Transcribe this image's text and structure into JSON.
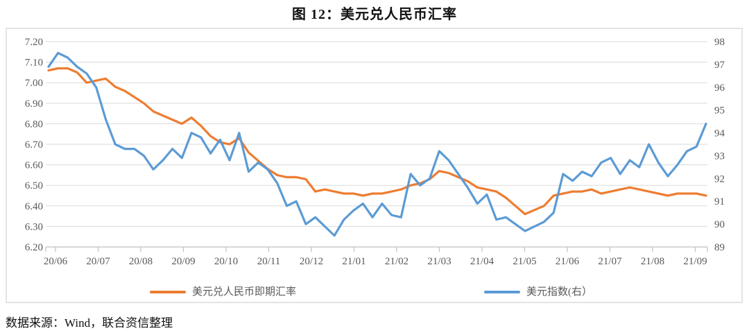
{
  "figure": {
    "title": "图 12：美元兑人民币汇率",
    "source": "数据来源：Wind，联合资信整理"
  },
  "legend": {
    "items": [
      {
        "label": "美元兑人民币即期汇率",
        "color": "#ED7D31"
      },
      {
        "label": "美元指数(右）",
        "color": "#5B9BD5"
      }
    ]
  },
  "chart_data": {
    "type": "line",
    "title": "图 12：美元兑人民币汇率",
    "grid": true,
    "legend_position": "bottom",
    "x_tick_labels": [
      "20/06",
      "20/07",
      "20/08",
      "20/09",
      "20/10",
      "20/11",
      "20/12",
      "21/01",
      "21/02",
      "21/03",
      "21/04",
      "21/05",
      "21/06",
      "21/07",
      "21/08",
      "21/09"
    ],
    "y_left": {
      "min": 6.2,
      "max": 7.2,
      "tick_step": 0.1,
      "ticks": [
        "7.20",
        "7.10",
        "7.00",
        "6.90",
        "6.80",
        "6.70",
        "6.60",
        "6.50",
        "6.40",
        "6.30",
        "6.20"
      ]
    },
    "y_right": {
      "min": 89,
      "max": 98,
      "tick_step": 1,
      "ticks": [
        "98",
        "97",
        "96",
        "95",
        "94",
        "93",
        "92",
        "91",
        "90",
        "89"
      ]
    },
    "style": {
      "grid_color": "#D9D9D9",
      "axis_color": "#BFBFBF",
      "label_color": "#595959"
    },
    "series": [
      {
        "name": "美元兑人民币即期汇率",
        "axis": "left",
        "color": "#ED7D31",
        "values": [
          7.06,
          7.07,
          7.07,
          7.05,
          7.0,
          7.01,
          7.02,
          6.98,
          6.96,
          6.93,
          6.9,
          6.86,
          6.84,
          6.82,
          6.8,
          6.83,
          6.79,
          6.74,
          6.71,
          6.7,
          6.73,
          6.66,
          6.62,
          6.58,
          6.55,
          6.54,
          6.54,
          6.53,
          6.47,
          6.48,
          6.47,
          6.46,
          6.46,
          6.45,
          6.46,
          6.46,
          6.47,
          6.48,
          6.5,
          6.51,
          6.53,
          6.57,
          6.56,
          6.54,
          6.52,
          6.49,
          6.48,
          6.47,
          6.44,
          6.4,
          6.36,
          6.38,
          6.4,
          6.45,
          6.46,
          6.47,
          6.47,
          6.48,
          6.46,
          6.47,
          6.48,
          6.49,
          6.48,
          6.47,
          6.46,
          6.45,
          6.46,
          6.46,
          6.46,
          6.45
        ]
      },
      {
        "name": "美元指数(右）",
        "axis": "right",
        "color": "#5B9BD5",
        "values": [
          96.9,
          97.5,
          97.3,
          96.9,
          96.6,
          96.0,
          94.6,
          93.5,
          93.3,
          93.3,
          93.0,
          92.4,
          92.8,
          93.3,
          92.9,
          94.0,
          93.8,
          93.1,
          93.7,
          92.8,
          94.0,
          92.3,
          92.7,
          92.4,
          91.8,
          90.8,
          91.0,
          90.0,
          90.3,
          89.9,
          89.5,
          90.2,
          90.6,
          90.9,
          90.3,
          90.9,
          90.4,
          90.3,
          92.2,
          91.7,
          92.0,
          93.2,
          92.8,
          92.2,
          91.6,
          90.9,
          91.3,
          90.2,
          90.3,
          90.0,
          89.7,
          89.9,
          90.1,
          90.5,
          92.2,
          91.9,
          92.3,
          92.1,
          92.7,
          92.9,
          92.2,
          92.8,
          92.5,
          93.5,
          92.7,
          92.1,
          92.6,
          93.2,
          93.4,
          94.4
        ]
      }
    ]
  }
}
